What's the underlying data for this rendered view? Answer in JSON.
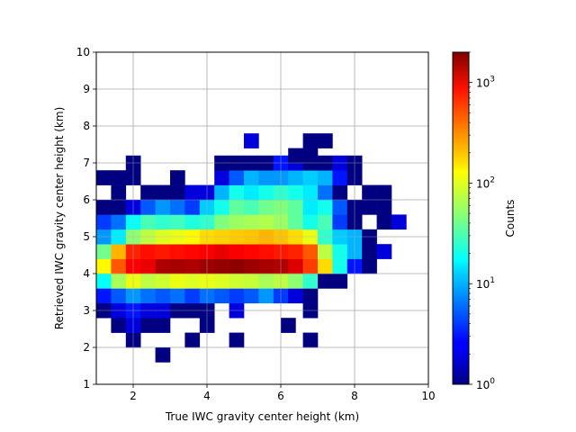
{
  "chart_data": {
    "type": "heatmap",
    "title": "",
    "xlabel": "True IWC gravity center height (km)",
    "ylabel": "Retrieved IWC gravity center height (km)",
    "xlim": [
      1,
      10
    ],
    "ylim": [
      1,
      10
    ],
    "xticks": [
      2,
      4,
      6,
      8,
      10
    ],
    "yticks": [
      1,
      2,
      3,
      4,
      5,
      6,
      7,
      8,
      9,
      10
    ],
    "xtick_labels": [
      "2",
      "4",
      "6",
      "8",
      "10"
    ],
    "ytick_labels": [
      "1",
      "2",
      "3",
      "4",
      "5",
      "6",
      "7",
      "8",
      "9",
      "10"
    ],
    "grid": true,
    "bin_width_km": 0.4,
    "x_bin_starts": [
      1.0,
      1.4,
      1.8,
      2.2,
      2.6,
      3.0,
      3.4,
      3.8,
      4.2,
      4.6,
      5.0,
      5.4,
      5.8,
      6.2,
      6.6,
      7.0,
      7.4,
      7.8,
      8.2,
      8.6,
      9.0,
      9.4
    ],
    "y_bin_starts": [
      1.6,
      2.0,
      2.4,
      2.8,
      3.2,
      3.6,
      4.0,
      4.4,
      4.8,
      5.2,
      5.6,
      6.0,
      6.4,
      6.8,
      7.0
    ],
    "colormap": "jet",
    "color_scale": "log",
    "colorbar": {
      "label": "Counts",
      "range": [
        1,
        2000
      ],
      "ticks": [
        1,
        10,
        100,
        1000
      ],
      "tick_base": "10",
      "tick_exponents": [
        "0",
        "1",
        "2",
        "3"
      ]
    },
    "cells": [
      {
        "x": 2.6,
        "y": 1.6,
        "count": 1
      },
      {
        "x": 1.8,
        "y": 2.0,
        "count": 1
      },
      {
        "x": 3.4,
        "y": 2.0,
        "count": 1
      },
      {
        "x": 4.6,
        "y": 2.0,
        "count": 1
      },
      {
        "x": 6.6,
        "y": 2.0,
        "count": 1
      },
      {
        "x": 1.4,
        "y": 2.4,
        "count": 1
      },
      {
        "x": 1.8,
        "y": 2.4,
        "count": 2
      },
      {
        "x": 2.2,
        "y": 2.4,
        "count": 1
      },
      {
        "x": 2.6,
        "y": 2.4,
        "count": 1
      },
      {
        "x": 3.8,
        "y": 2.4,
        "count": 1
      },
      {
        "x": 6.0,
        "y": 2.4,
        "count": 1
      },
      {
        "x": 1.0,
        "y": 2.8,
        "count": 1
      },
      {
        "x": 1.4,
        "y": 2.8,
        "count": 2
      },
      {
        "x": 1.8,
        "y": 2.8,
        "count": 3
      },
      {
        "x": 2.2,
        "y": 2.8,
        "count": 2
      },
      {
        "x": 2.6,
        "y": 2.8,
        "count": 2
      },
      {
        "x": 3.0,
        "y": 2.8,
        "count": 1
      },
      {
        "x": 3.4,
        "y": 2.8,
        "count": 1
      },
      {
        "x": 3.8,
        "y": 2.8,
        "count": 1
      },
      {
        "x": 4.6,
        "y": 2.8,
        "count": 2
      },
      {
        "x": 6.6,
        "y": 2.8,
        "count": 1
      },
      {
        "x": 1.0,
        "y": 3.2,
        "count": 3
      },
      {
        "x": 1.4,
        "y": 3.2,
        "count": 5
      },
      {
        "x": 1.8,
        "y": 3.2,
        "count": 8
      },
      {
        "x": 2.2,
        "y": 3.2,
        "count": 6
      },
      {
        "x": 2.6,
        "y": 3.2,
        "count": 5
      },
      {
        "x": 3.0,
        "y": 3.2,
        "count": 6
      },
      {
        "x": 3.4,
        "y": 3.2,
        "count": 4
      },
      {
        "x": 3.8,
        "y": 3.2,
        "count": 6
      },
      {
        "x": 4.2,
        "y": 3.2,
        "count": 5
      },
      {
        "x": 4.6,
        "y": 3.2,
        "count": 4
      },
      {
        "x": 5.0,
        "y": 3.2,
        "count": 5
      },
      {
        "x": 5.4,
        "y": 3.2,
        "count": 8
      },
      {
        "x": 5.8,
        "y": 3.2,
        "count": 4
      },
      {
        "x": 6.2,
        "y": 3.2,
        "count": 2
      },
      {
        "x": 6.6,
        "y": 3.2,
        "count": 1
      },
      {
        "x": 1.0,
        "y": 3.6,
        "count": 18
      },
      {
        "x": 1.4,
        "y": 3.6,
        "count": 60
      },
      {
        "x": 1.8,
        "y": 3.6,
        "count": 100
      },
      {
        "x": 2.2,
        "y": 3.6,
        "count": 70
      },
      {
        "x": 2.6,
        "y": 3.6,
        "count": 80
      },
      {
        "x": 3.0,
        "y": 3.6,
        "count": 100
      },
      {
        "x": 3.4,
        "y": 3.6,
        "count": 90
      },
      {
        "x": 3.8,
        "y": 3.6,
        "count": 100
      },
      {
        "x": 4.2,
        "y": 3.6,
        "count": 90
      },
      {
        "x": 4.6,
        "y": 3.6,
        "count": 80
      },
      {
        "x": 5.0,
        "y": 3.6,
        "count": 75
      },
      {
        "x": 5.4,
        "y": 3.6,
        "count": 60
      },
      {
        "x": 5.8,
        "y": 3.6,
        "count": 70
      },
      {
        "x": 6.2,
        "y": 3.6,
        "count": 50
      },
      {
        "x": 6.6,
        "y": 3.6,
        "count": 25
      },
      {
        "x": 7.0,
        "y": 3.6,
        "count": 1
      },
      {
        "x": 7.4,
        "y": 3.6,
        "count": 1
      },
      {
        "x": 1.0,
        "y": 4.0,
        "count": 120
      },
      {
        "x": 1.4,
        "y": 4.0,
        "count": 400
      },
      {
        "x": 1.8,
        "y": 4.0,
        "count": 800
      },
      {
        "x": 2.2,
        "y": 4.0,
        "count": 900
      },
      {
        "x": 2.6,
        "y": 4.0,
        "count": 1400
      },
      {
        "x": 3.0,
        "y": 4.0,
        "count": 1500
      },
      {
        "x": 3.4,
        "y": 4.0,
        "count": 1400
      },
      {
        "x": 3.8,
        "y": 4.0,
        "count": 1600
      },
      {
        "x": 4.2,
        "y": 4.0,
        "count": 1700
      },
      {
        "x": 4.6,
        "y": 4.0,
        "count": 1800
      },
      {
        "x": 5.0,
        "y": 4.0,
        "count": 1600
      },
      {
        "x": 5.4,
        "y": 4.0,
        "count": 1500
      },
      {
        "x": 5.8,
        "y": 4.0,
        "count": 1400
      },
      {
        "x": 6.2,
        "y": 4.0,
        "count": 1000
      },
      {
        "x": 6.6,
        "y": 4.0,
        "count": 500
      },
      {
        "x": 7.0,
        "y": 4.0,
        "count": 150
      },
      {
        "x": 7.4,
        "y": 4.0,
        "count": 20
      },
      {
        "x": 7.8,
        "y": 4.0,
        "count": 3
      },
      {
        "x": 8.2,
        "y": 4.0,
        "count": 1
      },
      {
        "x": 1.0,
        "y": 4.4,
        "count": 40
      },
      {
        "x": 1.4,
        "y": 4.4,
        "count": 200
      },
      {
        "x": 1.8,
        "y": 4.4,
        "count": 600
      },
      {
        "x": 2.2,
        "y": 4.4,
        "count": 700
      },
      {
        "x": 2.6,
        "y": 4.4,
        "count": 650
      },
      {
        "x": 3.0,
        "y": 4.4,
        "count": 700
      },
      {
        "x": 3.4,
        "y": 4.4,
        "count": 750
      },
      {
        "x": 3.8,
        "y": 4.4,
        "count": 800
      },
      {
        "x": 4.2,
        "y": 4.4,
        "count": 900
      },
      {
        "x": 4.6,
        "y": 4.4,
        "count": 800
      },
      {
        "x": 5.0,
        "y": 4.4,
        "count": 750
      },
      {
        "x": 5.4,
        "y": 4.4,
        "count": 700
      },
      {
        "x": 5.8,
        "y": 4.4,
        "count": 650
      },
      {
        "x": 6.2,
        "y": 4.4,
        "count": 600
      },
      {
        "x": 6.6,
        "y": 4.4,
        "count": 400
      },
      {
        "x": 7.0,
        "y": 4.4,
        "count": 70
      },
      {
        "x": 7.4,
        "y": 4.4,
        "count": 20
      },
      {
        "x": 7.8,
        "y": 4.4,
        "count": 10
      },
      {
        "x": 8.2,
        "y": 4.4,
        "count": 1
      },
      {
        "x": 8.6,
        "y": 4.4,
        "count": 2
      },
      {
        "x": 1.0,
        "y": 4.8,
        "count": 8
      },
      {
        "x": 1.4,
        "y": 4.8,
        "count": 15
      },
      {
        "x": 1.8,
        "y": 4.8,
        "count": 50
      },
      {
        "x": 2.2,
        "y": 4.8,
        "count": 70
      },
      {
        "x": 2.6,
        "y": 4.8,
        "count": 90
      },
      {
        "x": 3.0,
        "y": 4.8,
        "count": 100
      },
      {
        "x": 3.4,
        "y": 4.8,
        "count": 120
      },
      {
        "x": 3.8,
        "y": 4.8,
        "count": 150
      },
      {
        "x": 4.2,
        "y": 4.8,
        "count": 160
      },
      {
        "x": 4.6,
        "y": 4.8,
        "count": 170
      },
      {
        "x": 5.0,
        "y": 4.8,
        "count": 180
      },
      {
        "x": 5.4,
        "y": 4.8,
        "count": 200
      },
      {
        "x": 5.8,
        "y": 4.8,
        "count": 180
      },
      {
        "x": 6.2,
        "y": 4.8,
        "count": 150
      },
      {
        "x": 6.6,
        "y": 4.8,
        "count": 100
      },
      {
        "x": 7.0,
        "y": 4.8,
        "count": 25
      },
      {
        "x": 7.4,
        "y": 4.8,
        "count": 12
      },
      {
        "x": 7.8,
        "y": 4.8,
        "count": 10
      },
      {
        "x": 8.2,
        "y": 4.8,
        "count": 1
      },
      {
        "x": 1.0,
        "y": 5.2,
        "count": 4
      },
      {
        "x": 1.4,
        "y": 5.2,
        "count": 6
      },
      {
        "x": 1.8,
        "y": 5.2,
        "count": 18
      },
      {
        "x": 2.2,
        "y": 5.2,
        "count": 30
      },
      {
        "x": 2.6,
        "y": 5.2,
        "count": 25
      },
      {
        "x": 3.0,
        "y": 5.2,
        "count": 28
      },
      {
        "x": 3.4,
        "y": 5.2,
        "count": 22
      },
      {
        "x": 3.8,
        "y": 5.2,
        "count": 25
      },
      {
        "x": 4.2,
        "y": 5.2,
        "count": 45
      },
      {
        "x": 4.6,
        "y": 5.2,
        "count": 55
      },
      {
        "x": 5.0,
        "y": 5.2,
        "count": 60
      },
      {
        "x": 5.4,
        "y": 5.2,
        "count": 65
      },
      {
        "x": 5.8,
        "y": 5.2,
        "count": 55
      },
      {
        "x": 6.2,
        "y": 5.2,
        "count": 35
      },
      {
        "x": 6.6,
        "y": 5.2,
        "count": 20
      },
      {
        "x": 7.0,
        "y": 5.2,
        "count": 30
      },
      {
        "x": 7.4,
        "y": 5.2,
        "count": 4
      },
      {
        "x": 7.8,
        "y": 5.2,
        "count": 1
      },
      {
        "x": 8.6,
        "y": 5.2,
        "count": 1
      },
      {
        "x": 9.0,
        "y": 5.2,
        "count": 2
      },
      {
        "x": 1.0,
        "y": 5.6,
        "count": 1
      },
      {
        "x": 1.4,
        "y": 5.6,
        "count": 1
      },
      {
        "x": 1.8,
        "y": 5.6,
        "count": 2
      },
      {
        "x": 2.2,
        "y": 5.6,
        "count": 5
      },
      {
        "x": 2.6,
        "y": 5.6,
        "count": 8
      },
      {
        "x": 3.0,
        "y": 5.6,
        "count": 6
      },
      {
        "x": 3.4,
        "y": 5.6,
        "count": 4
      },
      {
        "x": 3.8,
        "y": 5.6,
        "count": 12
      },
      {
        "x": 4.2,
        "y": 5.6,
        "count": 20
      },
      {
        "x": 4.6,
        "y": 5.6,
        "count": 35
      },
      {
        "x": 5.0,
        "y": 5.6,
        "count": 30
      },
      {
        "x": 5.4,
        "y": 5.6,
        "count": 40
      },
      {
        "x": 5.8,
        "y": 5.6,
        "count": 45
      },
      {
        "x": 6.2,
        "y": 5.6,
        "count": 35
      },
      {
        "x": 6.6,
        "y": 5.6,
        "count": 15
      },
      {
        "x": 7.0,
        "y": 5.6,
        "count": 20
      },
      {
        "x": 7.4,
        "y": 5.6,
        "count": 5
      },
      {
        "x": 7.8,
        "y": 5.6,
        "count": 1
      },
      {
        "x": 8.2,
        "y": 5.6,
        "count": 1
      },
      {
        "x": 8.6,
        "y": 5.6,
        "count": 1
      },
      {
        "x": 1.4,
        "y": 6.0,
        "count": 1
      },
      {
        "x": 2.2,
        "y": 6.0,
        "count": 1
      },
      {
        "x": 2.6,
        "y": 6.0,
        "count": 1
      },
      {
        "x": 3.0,
        "y": 6.0,
        "count": 1
      },
      {
        "x": 3.4,
        "y": 6.0,
        "count": 2
      },
      {
        "x": 3.8,
        "y": 6.0,
        "count": 2
      },
      {
        "x": 4.2,
        "y": 6.0,
        "count": 10
      },
      {
        "x": 4.6,
        "y": 6.0,
        "count": 20
      },
      {
        "x": 5.0,
        "y": 6.0,
        "count": 15
      },
      {
        "x": 5.4,
        "y": 6.0,
        "count": 20
      },
      {
        "x": 5.8,
        "y": 6.0,
        "count": 25
      },
      {
        "x": 6.2,
        "y": 6.0,
        "count": 20
      },
      {
        "x": 6.6,
        "y": 6.0,
        "count": 15
      },
      {
        "x": 7.0,
        "y": 6.0,
        "count": 6
      },
      {
        "x": 7.4,
        "y": 6.0,
        "count": 1
      },
      {
        "x": 8.2,
        "y": 6.0,
        "count": 1
      },
      {
        "x": 8.6,
        "y": 6.0,
        "count": 1
      },
      {
        "x": 1.0,
        "y": 6.4,
        "count": 1
      },
      {
        "x": 1.4,
        "y": 6.4,
        "count": 1
      },
      {
        "x": 1.8,
        "y": 6.4,
        "count": 1
      },
      {
        "x": 3.0,
        "y": 6.4,
        "count": 1
      },
      {
        "x": 4.2,
        "y": 6.4,
        "count": 2
      },
      {
        "x": 4.6,
        "y": 6.4,
        "count": 5
      },
      {
        "x": 5.0,
        "y": 6.4,
        "count": 10
      },
      {
        "x": 5.4,
        "y": 6.4,
        "count": 8
      },
      {
        "x": 5.8,
        "y": 6.4,
        "count": 8
      },
      {
        "x": 6.2,
        "y": 6.4,
        "count": 10
      },
      {
        "x": 6.6,
        "y": 6.4,
        "count": 12
      },
      {
        "x": 7.0,
        "y": 6.4,
        "count": 10
      },
      {
        "x": 7.4,
        "y": 6.4,
        "count": 3
      },
      {
        "x": 7.8,
        "y": 6.4,
        "count": 1
      },
      {
        "x": 1.8,
        "y": 6.8,
        "count": 1
      },
      {
        "x": 4.2,
        "y": 6.8,
        "count": 1
      },
      {
        "x": 4.6,
        "y": 6.8,
        "count": 1
      },
      {
        "x": 5.0,
        "y": 6.8,
        "count": 1
      },
      {
        "x": 5.4,
        "y": 6.8,
        "count": 1
      },
      {
        "x": 5.8,
        "y": 6.8,
        "count": 3
      },
      {
        "x": 6.2,
        "y": 6.8,
        "count": 2
      },
      {
        "x": 6.6,
        "y": 6.8,
        "count": 1
      },
      {
        "x": 7.0,
        "y": 6.8,
        "count": 1
      },
      {
        "x": 7.4,
        "y": 6.8,
        "count": 2
      },
      {
        "x": 7.8,
        "y": 6.8,
        "count": 1
      },
      {
        "x": 6.2,
        "y": 7.0,
        "count": 1
      },
      {
        "x": 6.6,
        "y": 7.0,
        "count": 1
      },
      {
        "x": 6.6,
        "y": 7.4,
        "count": 1
      },
      {
        "x": 7.0,
        "y": 7.4,
        "count": 1
      },
      {
        "x": 5.0,
        "y": 7.4,
        "count": 2
      }
    ]
  }
}
